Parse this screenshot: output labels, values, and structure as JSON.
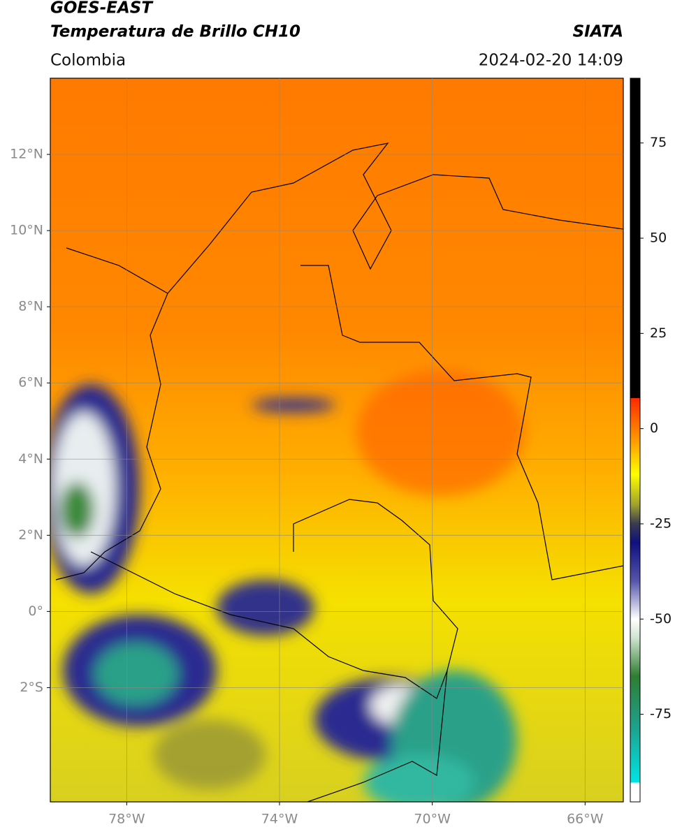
{
  "header": {
    "satellite": "GOES-EAST",
    "product": "Temperatura de Brillo CH10",
    "region": "Colombia",
    "source": "SIATA",
    "datetime": "2024-02-20 14:09"
  },
  "map": {
    "xlim": [
      -80,
      -65
    ],
    "ylim": [
      -5,
      14
    ],
    "xticks": [
      {
        "value": -78,
        "label": "78°W"
      },
      {
        "value": -74,
        "label": "74°W"
      },
      {
        "value": -70,
        "label": "70°W"
      },
      {
        "value": -66,
        "label": "66°W"
      }
    ],
    "yticks": [
      {
        "value": 12,
        "label": "12°N"
      },
      {
        "value": 10,
        "label": "10°N"
      },
      {
        "value": 8,
        "label": "8°N"
      },
      {
        "value": 6,
        "label": "6°N"
      },
      {
        "value": 4,
        "label": "4°N"
      },
      {
        "value": 2,
        "label": "2°N"
      },
      {
        "value": 0,
        "label": "0°"
      },
      {
        "value": -2,
        "label": "2°S"
      }
    ],
    "grid": true
  },
  "colorbar": {
    "lim": [
      -98,
      92
    ],
    "ticks": [
      75,
      50,
      25,
      0,
      -25,
      -50,
      -75
    ],
    "stops": [
      {
        "value": -98,
        "color": "#ffffff"
      },
      {
        "value": -93,
        "color": "#ffffff"
      },
      {
        "value": -93,
        "color": "#00e5e5"
      },
      {
        "value": -78,
        "color": "#1fa08a"
      },
      {
        "value": -65,
        "color": "#2e7d32"
      },
      {
        "value": -55,
        "color": "#cfe3cf"
      },
      {
        "value": -50,
        "color": "#ffffff"
      },
      {
        "value": -40,
        "color": "#5555aa"
      },
      {
        "value": -30,
        "color": "#101080"
      },
      {
        "value": -25,
        "color": "#3a3a50"
      },
      {
        "value": -20,
        "color": "#a0a030"
      },
      {
        "value": -12,
        "color": "#ffff00"
      },
      {
        "value": -3,
        "color": "#ff9900"
      },
      {
        "value": 8,
        "color": "#ff2a00"
      },
      {
        "value": 8,
        "color": "#000000"
      },
      {
        "value": 92,
        "color": "#000000"
      }
    ]
  }
}
